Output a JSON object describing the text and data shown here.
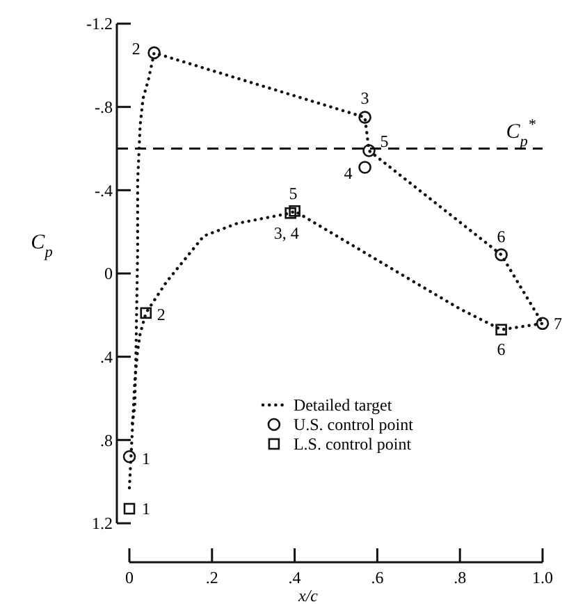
{
  "chart_data": {
    "type": "scatter",
    "xlabel": "x/c",
    "ylabel": "C$_{p}$",
    "xlim": [
      0,
      1.0
    ],
    "xticks": [
      0,
      {
        "value": 0.2,
        "label": ".2"
      },
      {
        "value": 0.4,
        "label": ".4"
      },
      {
        "value": 0.6,
        "label": ".6"
      },
      {
        "value": 0.8,
        "label": ".8"
      },
      {
        "value": 1.0,
        "label": "1.0"
      }
    ],
    "ylim": [
      1.2,
      -1.2
    ],
    "yticks": [
      {
        "value": -1.2,
        "label": "-1.2"
      },
      {
        "value": -0.8,
        "label": "-.8"
      },
      {
        "value": -0.4,
        "label": "-.4"
      },
      0,
      {
        "value": 0.4,
        "label": ".4"
      },
      {
        "value": 0.8,
        "label": ".8"
      },
      {
        "value": 1.2,
        "label": "1.2"
      }
    ],
    "grid": false,
    "legend": "bottom",
    "series": [
      {
        "name": "Detailed target",
        "type": "line",
        "line_style": "dotted",
        "marker": "none",
        "color": "#111111",
        "x": [
          0.007,
          0.013,
          0.016,
          0.02,
          0.02,
          0.026,
          0.033,
          0.046,
          0.06,
          0.57,
          0.58,
          0.9,
          1.0
        ],
        "values": [
          0.72,
          0.64,
          0.37,
          -0.11,
          -0.44,
          -0.71,
          -0.84,
          -0.93,
          -1.06,
          -0.75,
          -0.59,
          -0.09,
          0.24
        ]
      },
      {
        "type": "line",
        "line_style": "dotted",
        "marker": "none",
        "color": "#111111",
        "x": [
          0,
          0.007,
          0.013,
          0.02,
          0.026,
          0.04,
          0.09,
          0.18,
          0.26,
          0.39,
          0.4,
          0.68,
          0.8,
          0.9,
          1.0
        ],
        "values": [
          1.03,
          0.76,
          0.52,
          0.37,
          0.29,
          0.19,
          0.04,
          -0.18,
          -0.24,
          -0.29,
          -0.3,
          0.03,
          0.17,
          0.27,
          0.24
        ]
      },
      {
        "name": "U.S. control point",
        "type": "scatter",
        "marker": "circle",
        "color": "#111111",
        "x": [
          0,
          0.06,
          0.57,
          0.57,
          0.58,
          0.9,
          1.0
        ],
        "values": [
          0.88,
          -1.06,
          -0.75,
          -0.51,
          -0.59,
          -0.09,
          0.24
        ]
      },
      {
        "name": "L.S. control point",
        "type": "scatter",
        "marker": "square",
        "color": "#111111",
        "x": [
          0,
          0.04,
          0.39,
          0.4,
          0.9
        ],
        "values": [
          1.13,
          0.19,
          -0.29,
          -0.3,
          0.27
        ]
      }
    ],
    "ref_lines": [
      {
        "axis": "y",
        "value": -0.6,
        "label": "C$_{p}$$^{*}$",
        "line_style": "dashed",
        "color": "#111111"
      }
    ],
    "annotations": [
      {
        "text": "1",
        "x": 0,
        "y": 0.88
      },
      {
        "text": "2",
        "x": 0.06,
        "y": -1.06
      },
      {
        "text": "3",
        "x": 0.57,
        "y": -0.75
      },
      {
        "text": "4",
        "x": 0.57,
        "y": -0.51
      },
      {
        "text": "5",
        "x": 0.58,
        "y": -0.59
      },
      {
        "text": "6",
        "x": 0.9,
        "y": -0.09
      },
      {
        "text": "7",
        "x": 1.0,
        "y": 0.24
      },
      {
        "text": "1",
        "x": 0,
        "y": 1.13
      },
      {
        "text": "2",
        "x": 0.04,
        "y": 0.19
      },
      {
        "text": "3, 4",
        "x": 0.39,
        "y": -0.29
      },
      {
        "text": "5",
        "x": 0.4,
        "y": -0.3
      },
      {
        "text": "6",
        "x": 0.9,
        "y": 0.27
      }
    ]
  }
}
